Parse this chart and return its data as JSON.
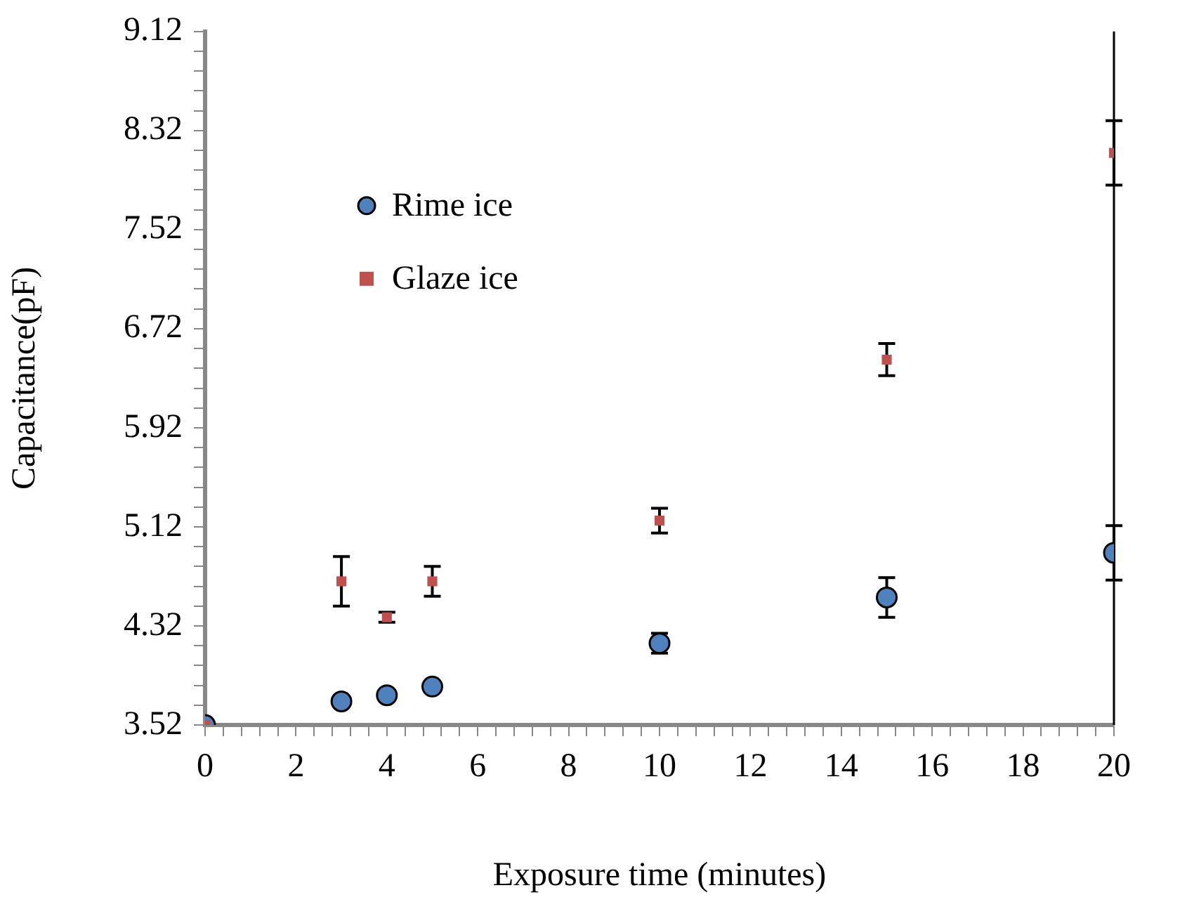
{
  "chart_data": {
    "type": "scatter",
    "xlabel": "Exposure time (minutes)",
    "ylabel": "Capacitance(pF)",
    "x": [
      0,
      3,
      4,
      5,
      10,
      15,
      20
    ],
    "series": [
      {
        "name": "Rime ice",
        "color": "#4f81bd",
        "marker": "circle",
        "values": [
          3.52,
          3.71,
          3.76,
          3.83,
          4.18,
          4.55,
          4.91
        ],
        "errors": [
          null,
          0.02,
          0.02,
          0.02,
          0.08,
          0.16,
          0.22
        ]
      },
      {
        "name": "Glaze ice",
        "color": "#c0504d",
        "marker": "square",
        "values": [
          3.52,
          4.68,
          4.39,
          4.68,
          5.17,
          6.47,
          8.14
        ],
        "errors": [
          null,
          0.2,
          0.04,
          0.12,
          0.1,
          0.13,
          0.26
        ]
      }
    ],
    "xlim": [
      0,
      20
    ],
    "xticks": [
      0,
      {
        "value": 0.4,
        "label": null
      },
      {
        "value": 0.8,
        "label": null
      },
      {
        "value": 1.2,
        "label": null
      },
      {
        "value": 1.6,
        "label": null
      },
      2,
      {
        "value": 2.4,
        "label": null
      },
      {
        "value": 2.8,
        "label": null
      },
      {
        "value": 3.2,
        "label": null
      },
      {
        "value": 3.6,
        "label": null
      },
      4,
      {
        "value": 4.4,
        "label": null
      },
      {
        "value": 4.8,
        "label": null
      },
      {
        "value": 5.2,
        "label": null
      },
      {
        "value": 5.6,
        "label": null
      },
      6,
      {
        "value": 6.4,
        "label": null
      },
      {
        "value": 6.8,
        "label": null
      },
      {
        "value": 7.2,
        "label": null
      },
      {
        "value": 7.6,
        "label": null
      },
      8,
      {
        "value": 8.4,
        "label": null
      },
      {
        "value": 8.8,
        "label": null
      },
      {
        "value": 9.2,
        "label": null
      },
      {
        "value": 9.6,
        "label": null
      },
      10,
      {
        "value": 10.4,
        "label": null
      },
      {
        "value": 10.8,
        "label": null
      },
      {
        "value": 11.2,
        "label": null
      },
      {
        "value": 11.6,
        "label": null
      },
      12,
      {
        "value": 12.4,
        "label": null
      },
      {
        "value": 12.8,
        "label": null
      },
      {
        "value": 13.2,
        "label": null
      },
      {
        "value": 13.6,
        "label": null
      },
      14,
      {
        "value": 14.4,
        "label": null
      },
      {
        "value": 14.8,
        "label": null
      },
      {
        "value": 15.2,
        "label": null
      },
      {
        "value": 15.6,
        "label": null
      },
      16,
      {
        "value": 16.4,
        "label": null
      },
      {
        "value": 16.8,
        "label": null
      },
      {
        "value": 17.2,
        "label": null
      },
      {
        "value": 17.6,
        "label": null
      },
      18,
      {
        "value": 18.4,
        "label": null
      },
      {
        "value": 18.8,
        "label": null
      },
      {
        "value": 19.2,
        "label": null
      },
      {
        "value": 19.6,
        "label": null
      },
      20
    ],
    "ylim": [
      3.52,
      9.12
    ],
    "yticks": [
      {
        "value": 3.52,
        "label": "3.52"
      },
      {
        "value": 3.68,
        "label": null
      },
      {
        "value": 3.84,
        "label": null
      },
      {
        "value": 4,
        "label": null
      },
      {
        "value": 4.16,
        "label": null
      },
      {
        "value": 4.32,
        "label": "4.32"
      },
      {
        "value": 4.48,
        "label": null
      },
      {
        "value": 4.64,
        "label": null
      },
      {
        "value": 4.8,
        "label": null
      },
      {
        "value": 4.96,
        "label": null
      },
      {
        "value": 5.12,
        "label": "5.12"
      },
      {
        "value": 5.28,
        "label": null
      },
      {
        "value": 5.44,
        "label": null
      },
      {
        "value": 5.6,
        "label": null
      },
      {
        "value": 5.76,
        "label": null
      },
      {
        "value": 5.92,
        "label": "5.92"
      },
      {
        "value": 6.08,
        "label": null
      },
      {
        "value": 6.24,
        "label": null
      },
      {
        "value": 6.4,
        "label": null
      },
      {
        "value": 6.56,
        "label": null
      },
      {
        "value": 6.72,
        "label": "6.72"
      },
      {
        "value": 6.88,
        "label": null
      },
      {
        "value": 7.04,
        "label": null
      },
      {
        "value": 7.2,
        "label": null
      },
      {
        "value": 7.36,
        "label": null
      },
      {
        "value": 7.52,
        "label": "7.52"
      },
      {
        "value": 7.68,
        "label": null
      },
      {
        "value": 7.84,
        "label": null
      },
      {
        "value": 8,
        "label": null
      },
      {
        "value": 8.16,
        "label": null
      },
      {
        "value": 8.32,
        "label": "8.32"
      },
      {
        "value": 8.48,
        "label": null
      },
      {
        "value": 8.64,
        "label": null
      },
      {
        "value": 8.8,
        "label": null
      },
      {
        "value": 8.96,
        "label": null
      },
      {
        "value": 9.12,
        "label": "9.12"
      }
    ],
    "grid": false,
    "legend": "top left"
  }
}
